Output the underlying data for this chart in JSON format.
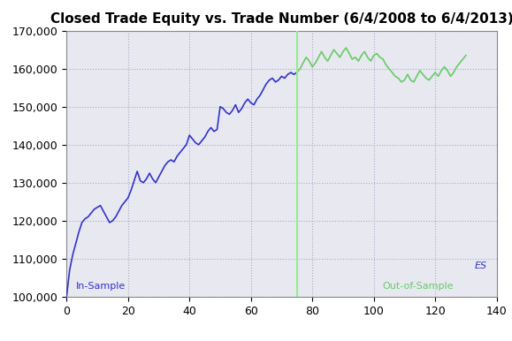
{
  "title": "Closed Trade Equity vs. Trade Number (6/4/2008 to 6/4/2013)",
  "xlim": [
    0,
    140
  ],
  "ylim": [
    100000,
    170000
  ],
  "xticks": [
    0,
    20,
    40,
    60,
    80,
    100,
    120,
    140
  ],
  "yticks": [
    100000,
    110000,
    120000,
    130000,
    140000,
    150000,
    160000,
    170000
  ],
  "vline_x": 75,
  "vline_color": "#90EE90",
  "in_sample_color": "#3333CC",
  "oos_color": "#66CC66",
  "bg_color": "#E8E8F0",
  "grid_color": "#AAAACC",
  "label_is": "In-Sample",
  "label_oos": "Out-of-Sample",
  "label_es": "ES",
  "label_is_color": "#3333CC",
  "label_oos_color": "#66CC66",
  "taskbar_color": "#4a4a6a",
  "title_fontsize": 11,
  "axis_fontsize": 9,
  "in_sample_x": [
    0,
    1,
    2,
    3,
    4,
    5,
    6,
    7,
    8,
    9,
    10,
    11,
    12,
    13,
    14,
    15,
    16,
    17,
    18,
    19,
    20,
    21,
    22,
    23,
    24,
    25,
    26,
    27,
    28,
    29,
    30,
    31,
    32,
    33,
    34,
    35,
    36,
    37,
    38,
    39,
    40,
    41,
    42,
    43,
    44,
    45,
    46,
    47,
    48,
    49,
    50,
    51,
    52,
    53,
    54,
    55,
    56,
    57,
    58,
    59,
    60,
    61,
    62,
    63,
    64,
    65,
    66,
    67,
    68,
    69,
    70,
    71,
    72,
    73,
    74,
    75
  ],
  "in_sample_y": [
    100000,
    107000,
    111000,
    114000,
    117000,
    119500,
    120500,
    121000,
    122000,
    123000,
    123500,
    124000,
    122500,
    121000,
    119500,
    120000,
    121000,
    122500,
    124000,
    125000,
    126000,
    128000,
    130500,
    133000,
    130500,
    130000,
    131000,
    132500,
    131000,
    130000,
    131500,
    133000,
    134500,
    135500,
    136000,
    135500,
    137000,
    138000,
    139000,
    140000,
    142500,
    141500,
    140500,
    140000,
    141000,
    142000,
    143500,
    144500,
    143500,
    144000,
    150000,
    149500,
    148500,
    148000,
    149000,
    150500,
    148500,
    149500,
    151000,
    152000,
    151000,
    150500,
    152000,
    153000,
    154500,
    156000,
    157000,
    157500,
    156500,
    157000,
    158000,
    157500,
    158500,
    159000,
    158500,
    159000
  ],
  "oos_x": [
    75,
    76,
    77,
    78,
    79,
    80,
    81,
    82,
    83,
    84,
    85,
    86,
    87,
    88,
    89,
    90,
    91,
    92,
    93,
    94,
    95,
    96,
    97,
    98,
    99,
    100,
    101,
    102,
    103,
    104,
    105,
    106,
    107,
    108,
    109,
    110,
    111,
    112,
    113,
    114,
    115,
    116,
    117,
    118,
    119,
    120,
    121,
    122,
    123,
    124,
    125,
    126,
    127,
    128,
    129,
    130
  ],
  "oos_y": [
    159000,
    160000,
    161500,
    163000,
    162000,
    160500,
    161500,
    163000,
    164500,
    163000,
    162000,
    163500,
    165000,
    164000,
    163000,
    164500,
    165500,
    164000,
    162500,
    163000,
    162000,
    163500,
    164500,
    163000,
    162000,
    163500,
    164000,
    163000,
    162500,
    161000,
    160000,
    159000,
    158000,
    157500,
    156500,
    157000,
    158500,
    157000,
    156500,
    158000,
    159500,
    158500,
    157500,
    157000,
    158000,
    159000,
    158000,
    159500,
    160500,
    159500,
    158000,
    159000,
    160500,
    161500,
    162500,
    163500
  ]
}
